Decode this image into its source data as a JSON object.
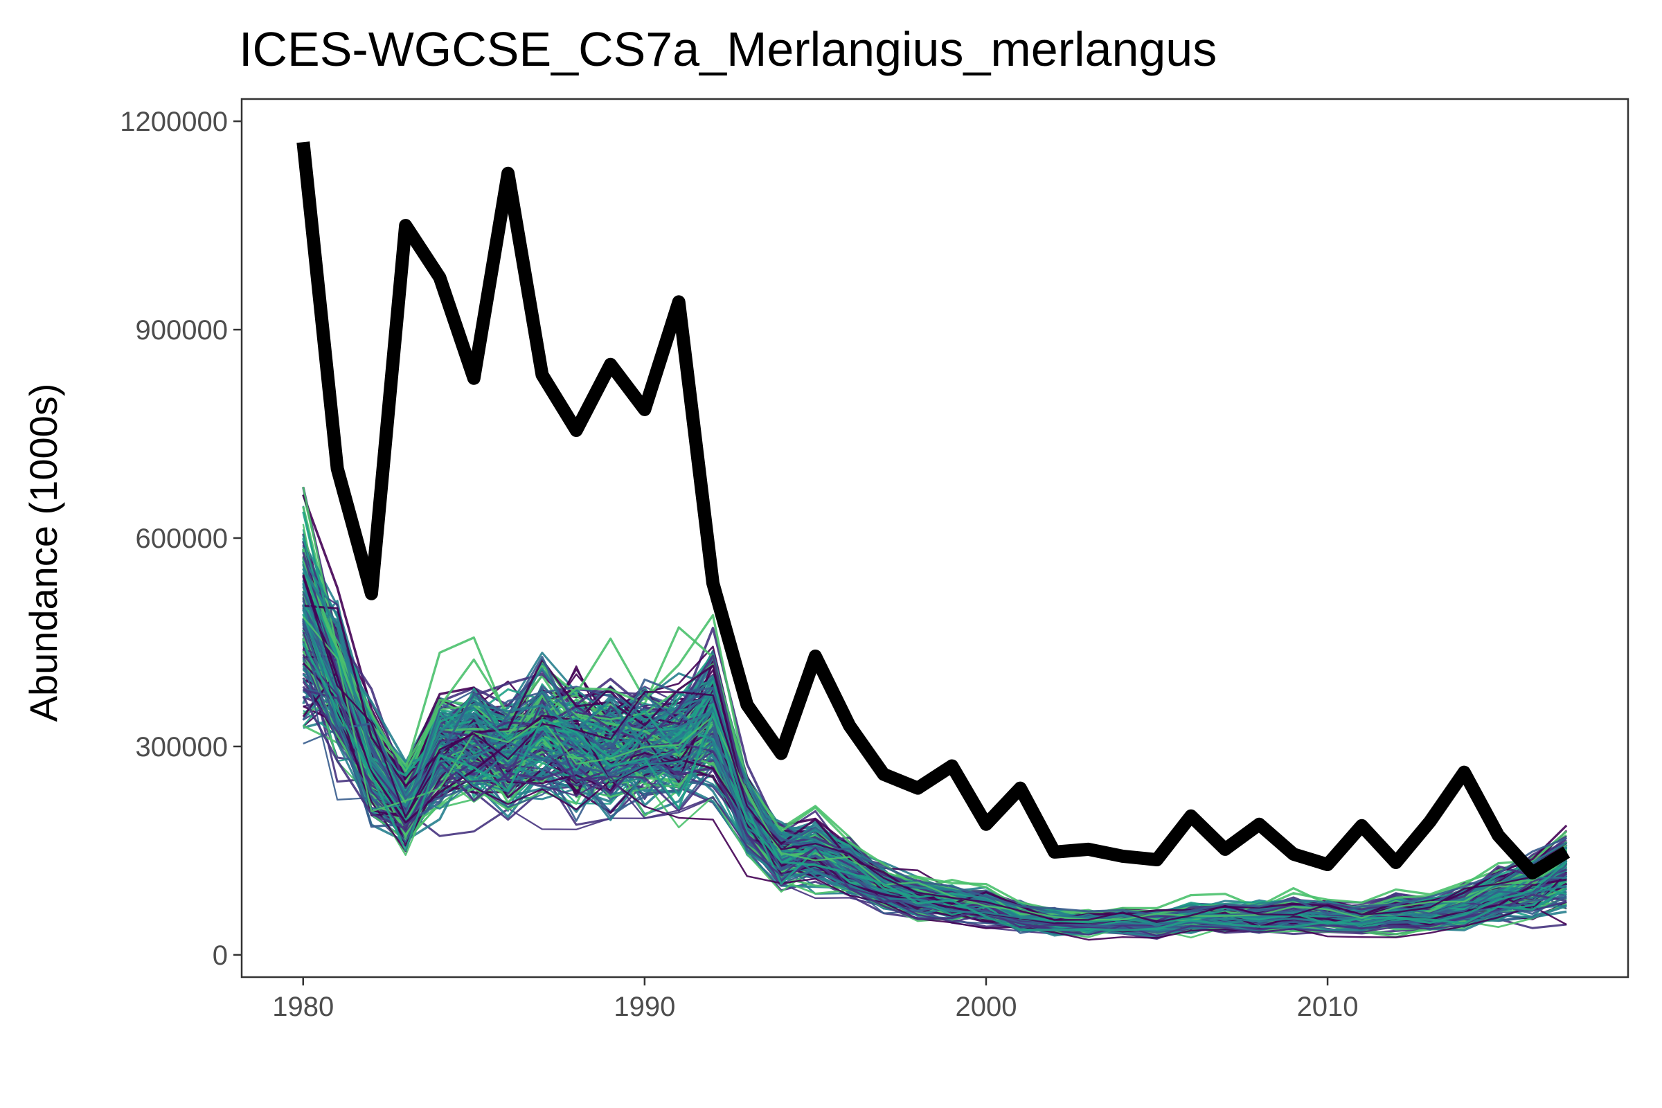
{
  "chart_data": {
    "type": "line",
    "title": "ICES-WGCSE_CS7a_Merlangius_merlangus",
    "xlabel": "",
    "ylabel": "Abundance (1000s)",
    "xlim": [
      1978.2,
      2018.8
    ],
    "ylim": [
      -32000,
      1232000
    ],
    "x_ticks": [
      1980,
      1990,
      2000,
      2010
    ],
    "y_ticks": [
      0,
      300000,
      600000,
      900000,
      1200000
    ],
    "x_tick_labels": [
      "1980",
      "1990",
      "2000",
      "2010"
    ],
    "y_tick_labels": [
      "0",
      "300000",
      "600000",
      "900000",
      "1200000"
    ],
    "grid": false,
    "legend": "none",
    "x": [
      1980,
      1981,
      1982,
      1983,
      1984,
      1985,
      1986,
      1987,
      1988,
      1989,
      1990,
      1991,
      1992,
      1993,
      1994,
      1995,
      1996,
      1997,
      1998,
      1999,
      2000,
      2001,
      2002,
      2003,
      2004,
      2005,
      2006,
      2007,
      2008,
      2009,
      2010,
      2011,
      2012,
      2013,
      2014,
      2015,
      2016,
      2017
    ],
    "series": [
      {
        "role": "assessment",
        "color": "#000000",
        "values": [
          1170000,
          700000,
          520000,
          1050000,
          975000,
          830000,
          1125000,
          835000,
          755000,
          850000,
          785000,
          940000,
          535000,
          360000,
          290000,
          430000,
          330000,
          260000,
          240000,
          272000,
          188000,
          240000,
          148000,
          152000,
          142000,
          137000,
          200000,
          152000,
          188000,
          145000,
          130000,
          186000,
          133000,
          192000,
          263000,
          172000,
          118000,
          148000
        ]
      }
    ],
    "ensemble": {
      "count": 220,
      "palette": [
        "#440154",
        "#46337e",
        "#365c8d",
        "#277f8e",
        "#1fa187",
        "#4ac16d"
      ],
      "central_values": [
        490000,
        400000,
        280000,
        215000,
        300000,
        310000,
        290000,
        325000,
        300000,
        305000,
        300000,
        305000,
        345000,
        200000,
        145000,
        150000,
        125000,
        98000,
        84000,
        76000,
        72000,
        55000,
        50000,
        46000,
        50000,
        48000,
        55000,
        56000,
        55000,
        60000,
        57000,
        52000,
        62000,
        60000,
        72000,
        88000,
        100000,
        125000
      ]
    }
  }
}
